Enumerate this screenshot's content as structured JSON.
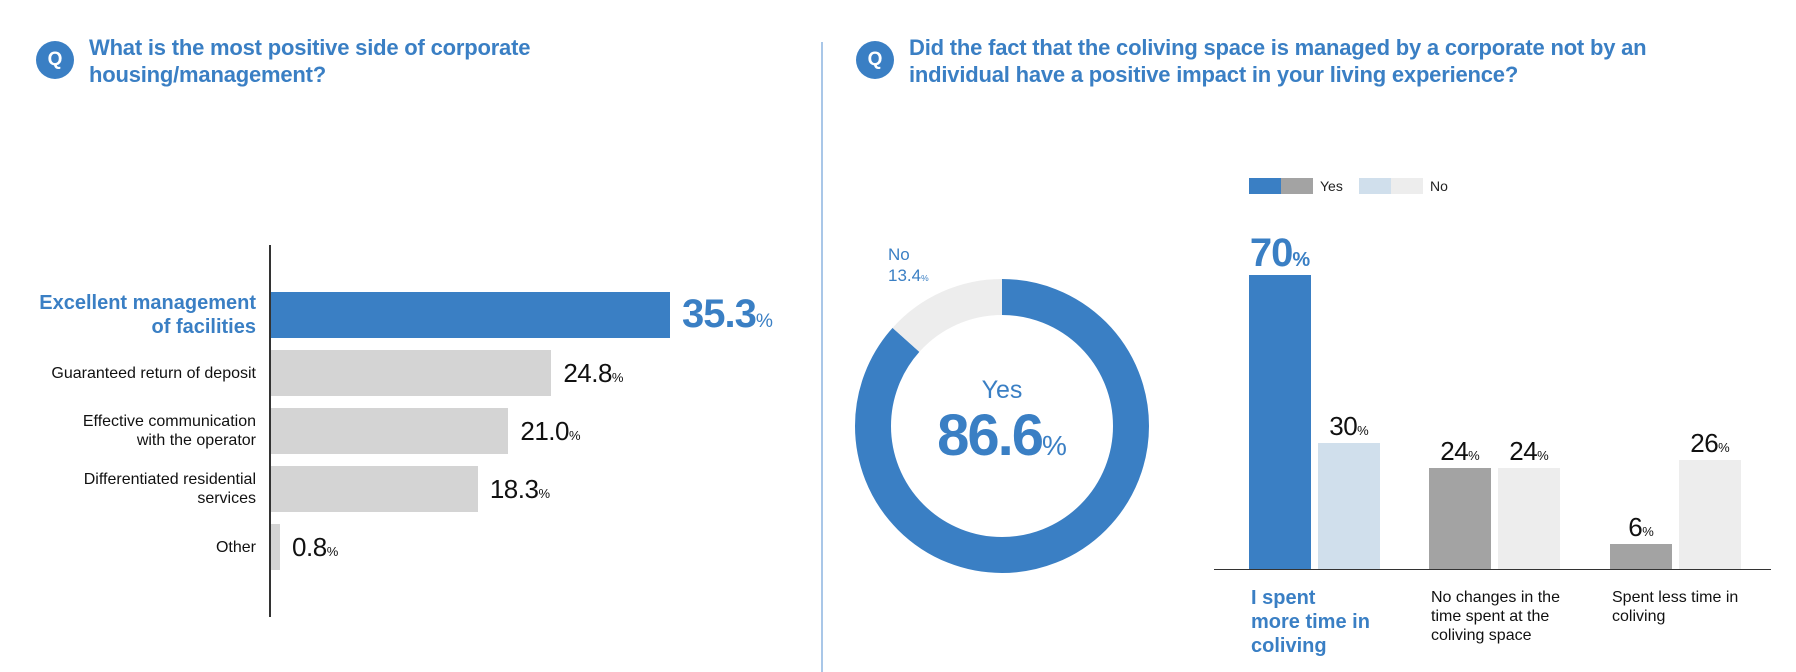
{
  "left_panel": {
    "badge": "Q",
    "question_line1": "What is the most positive side of corporate",
    "question_line2": "housing/management?"
  },
  "right_panel": {
    "badge": "Q",
    "question_line1": "Did the fact that the coliving space is managed by a corporate not by an",
    "question_line2": "individual have a positive impact in your living experience?"
  },
  "colors": {
    "accent": "#3a7fc4",
    "gray_bar": "#d4d4d4",
    "dark_gray": "#a3a3a3",
    "light_blue": "#d0dfec",
    "light_gray": "#ededed"
  },
  "chart_data": [
    {
      "type": "bar",
      "orientation": "horizontal",
      "categories": [
        [
          "Excellent management",
          "of facilities"
        ],
        [
          "Guaranteed return of deposit"
        ],
        [
          "Effective communication",
          "with the operator"
        ],
        [
          "Differentiated residential",
          "services"
        ],
        [
          "Other"
        ]
      ],
      "values": [
        35.3,
        24.8,
        21.0,
        18.3,
        0.8
      ],
      "value_labels": [
        "35.3",
        "24.8",
        "21.0",
        "18.3",
        "0.8"
      ],
      "unit": "%",
      "highlight_index": 0
    },
    {
      "type": "pie",
      "style": "donut",
      "slices": [
        {
          "label": "Yes",
          "value": 86.6,
          "value_label": "86.6"
        },
        {
          "label": "No",
          "value": 13.4,
          "value_label": "13.4"
        }
      ],
      "unit": "%"
    },
    {
      "type": "bar",
      "orientation": "vertical",
      "legend": [
        "Yes",
        "No"
      ],
      "legend_position": "top-left",
      "categories": [
        [
          "I spent",
          "more time in",
          "coliving"
        ],
        [
          "No changes in the",
          "time spent at the",
          "coliving space"
        ],
        [
          "Spent less time in",
          "coliving"
        ]
      ],
      "series": [
        {
          "name": "Yes",
          "values": [
            70,
            24,
            6
          ]
        },
        {
          "name": "No",
          "values": [
            30,
            24,
            26
          ]
        }
      ],
      "unit": "%",
      "highlight_index": 0
    }
  ]
}
